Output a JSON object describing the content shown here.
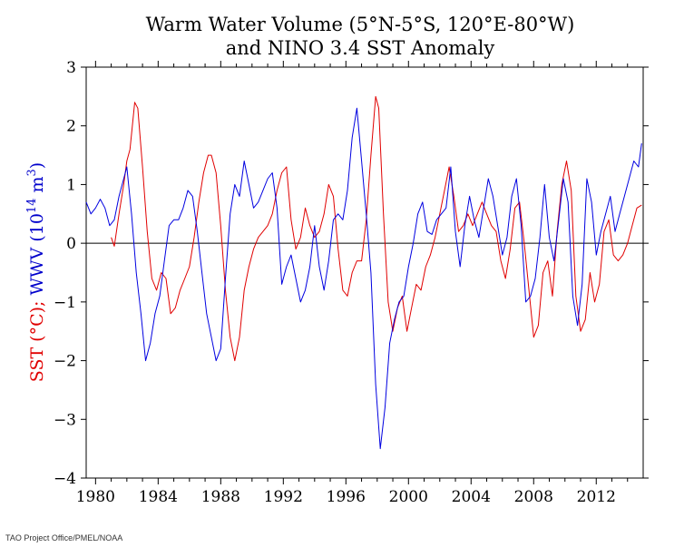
{
  "chart_data": {
    "type": "line",
    "title_line1": "Warm Water Volume (5°N-5°S, 120°E-80°W)",
    "title_line2": "and NINO 3.4 SST Anomaly",
    "ylabel_sst": "SST (°C);",
    "ylabel_wwv_prefix": "WWV (10",
    "ylabel_wwv_exp1": "14",
    "ylabel_wwv_mid": " m",
    "ylabel_wwv_exp2": "3",
    "ylabel_wwv_suffix": ")",
    "xlim": [
      1979.4,
      2015.0
    ],
    "ylim": [
      -4,
      3
    ],
    "x_ticks": [
      1980,
      1984,
      1988,
      1992,
      1996,
      2000,
      2004,
      2008,
      2012
    ],
    "x_tick_labels": [
      "1980",
      "1984",
      "1988",
      "1992",
      "1996",
      "2000",
      "2004",
      "2008",
      "2012"
    ],
    "y_ticks": [
      3,
      2,
      1,
      0,
      -1,
      -2,
      -3,
      -4
    ],
    "y_tick_labels": [
      "3",
      "2",
      "1",
      "0",
      "−1",
      "−2",
      "−3",
      "−4"
    ],
    "zero_line": true,
    "grid": false,
    "series": [
      {
        "color": "#e00000",
        "points": [
          [
            1981.0,
            0.1
          ],
          [
            1981.2,
            -0.05
          ],
          [
            1981.5,
            0.5
          ],
          [
            1981.8,
            1.0
          ],
          [
            1982.0,
            1.4
          ],
          [
            1982.2,
            1.6
          ],
          [
            1982.5,
            2.4
          ],
          [
            1982.7,
            2.3
          ],
          [
            1983.0,
            1.3
          ],
          [
            1983.3,
            0.2
          ],
          [
            1983.6,
            -0.6
          ],
          [
            1983.9,
            -0.8
          ],
          [
            1984.2,
            -0.5
          ],
          [
            1984.5,
            -0.6
          ],
          [
            1984.8,
            -1.2
          ],
          [
            1985.1,
            -1.1
          ],
          [
            1985.4,
            -0.8
          ],
          [
            1985.7,
            -0.6
          ],
          [
            1986.0,
            -0.4
          ],
          [
            1986.3,
            0.1
          ],
          [
            1986.6,
            0.7
          ],
          [
            1986.9,
            1.2
          ],
          [
            1987.2,
            1.5
          ],
          [
            1987.4,
            1.5
          ],
          [
            1987.7,
            1.2
          ],
          [
            1988.0,
            0.3
          ],
          [
            1988.3,
            -0.8
          ],
          [
            1988.6,
            -1.6
          ],
          [
            1988.9,
            -2.0
          ],
          [
            1989.2,
            -1.6
          ],
          [
            1989.5,
            -0.8
          ],
          [
            1989.8,
            -0.4
          ],
          [
            1990.1,
            -0.1
          ],
          [
            1990.4,
            0.1
          ],
          [
            1990.7,
            0.2
          ],
          [
            1991.0,
            0.3
          ],
          [
            1991.3,
            0.5
          ],
          [
            1991.6,
            0.9
          ],
          [
            1991.9,
            1.2
          ],
          [
            1992.2,
            1.3
          ],
          [
            1992.5,
            0.4
          ],
          [
            1992.8,
            -0.1
          ],
          [
            1993.1,
            0.1
          ],
          [
            1993.4,
            0.6
          ],
          [
            1993.7,
            0.3
          ],
          [
            1994.0,
            0.1
          ],
          [
            1994.3,
            0.2
          ],
          [
            1994.6,
            0.5
          ],
          [
            1994.9,
            1.0
          ],
          [
            1995.2,
            0.8
          ],
          [
            1995.5,
            -0.1
          ],
          [
            1995.8,
            -0.8
          ],
          [
            1996.1,
            -0.9
          ],
          [
            1996.4,
            -0.5
          ],
          [
            1996.7,
            -0.3
          ],
          [
            1997.0,
            -0.3
          ],
          [
            1997.3,
            0.4
          ],
          [
            1997.6,
            1.5
          ],
          [
            1997.9,
            2.5
          ],
          [
            1998.1,
            2.3
          ],
          [
            1998.4,
            0.5
          ],
          [
            1998.7,
            -1.0
          ],
          [
            1999.0,
            -1.5
          ],
          [
            1999.3,
            -1.1
          ],
          [
            1999.6,
            -0.9
          ],
          [
            1999.9,
            -1.5
          ],
          [
            2000.2,
            -1.1
          ],
          [
            2000.5,
            -0.7
          ],
          [
            2000.8,
            -0.8
          ],
          [
            2001.1,
            -0.4
          ],
          [
            2001.4,
            -0.2
          ],
          [
            2001.7,
            0.1
          ],
          [
            2002.0,
            0.5
          ],
          [
            2002.3,
            0.9
          ],
          [
            2002.6,
            1.3
          ],
          [
            2002.9,
            0.8
          ],
          [
            2003.2,
            0.2
          ],
          [
            2003.5,
            0.3
          ],
          [
            2003.8,
            0.5
          ],
          [
            2004.1,
            0.3
          ],
          [
            2004.4,
            0.5
          ],
          [
            2004.7,
            0.7
          ],
          [
            2005.0,
            0.5
          ],
          [
            2005.3,
            0.3
          ],
          [
            2005.6,
            0.2
          ],
          [
            2005.9,
            -0.3
          ],
          [
            2006.2,
            -0.6
          ],
          [
            2006.5,
            -0.1
          ],
          [
            2006.8,
            0.6
          ],
          [
            2007.1,
            0.7
          ],
          [
            2007.4,
            0.0
          ],
          [
            2007.7,
            -0.8
          ],
          [
            2008.0,
            -1.6
          ],
          [
            2008.3,
            -1.4
          ],
          [
            2008.6,
            -0.5
          ],
          [
            2008.9,
            -0.3
          ],
          [
            2009.2,
            -0.9
          ],
          [
            2009.5,
            0.2
          ],
          [
            2009.8,
            1.0
          ],
          [
            2010.1,
            1.4
          ],
          [
            2010.4,
            0.9
          ],
          [
            2010.7,
            -0.9
          ],
          [
            2011.0,
            -1.5
          ],
          [
            2011.3,
            -1.3
          ],
          [
            2011.6,
            -0.5
          ],
          [
            2011.9,
            -1.0
          ],
          [
            2012.2,
            -0.7
          ],
          [
            2012.5,
            0.2
          ],
          [
            2012.8,
            0.4
          ],
          [
            2013.1,
            -0.2
          ],
          [
            2013.4,
            -0.3
          ],
          [
            2013.7,
            -0.2
          ],
          [
            2014.0,
            0.0
          ],
          [
            2014.3,
            0.3
          ],
          [
            2014.6,
            0.6
          ],
          [
            2014.9,
            0.65
          ]
        ]
      },
      {
        "color": "#0000e0",
        "points": [
          [
            1979.4,
            0.7
          ],
          [
            1979.7,
            0.5
          ],
          [
            1980.0,
            0.6
          ],
          [
            1980.3,
            0.75
          ],
          [
            1980.6,
            0.6
          ],
          [
            1980.9,
            0.3
          ],
          [
            1981.2,
            0.4
          ],
          [
            1981.5,
            0.8
          ],
          [
            1981.8,
            1.1
          ],
          [
            1982.0,
            1.3
          ],
          [
            1982.3,
            0.5
          ],
          [
            1982.6,
            -0.5
          ],
          [
            1982.9,
            -1.2
          ],
          [
            1983.2,
            -2.0
          ],
          [
            1983.5,
            -1.7
          ],
          [
            1983.8,
            -1.2
          ],
          [
            1984.1,
            -0.9
          ],
          [
            1984.4,
            -0.3
          ],
          [
            1984.7,
            0.3
          ],
          [
            1985.0,
            0.4
          ],
          [
            1985.3,
            0.4
          ],
          [
            1985.6,
            0.6
          ],
          [
            1985.9,
            0.9
          ],
          [
            1986.2,
            0.8
          ],
          [
            1986.5,
            0.2
          ],
          [
            1986.8,
            -0.5
          ],
          [
            1987.1,
            -1.2
          ],
          [
            1987.4,
            -1.6
          ],
          [
            1987.7,
            -2.0
          ],
          [
            1988.0,
            -1.8
          ],
          [
            1988.3,
            -0.6
          ],
          [
            1988.6,
            0.5
          ],
          [
            1988.9,
            1.0
          ],
          [
            1989.2,
            0.8
          ],
          [
            1989.5,
            1.4
          ],
          [
            1989.8,
            1.0
          ],
          [
            1990.1,
            0.6
          ],
          [
            1990.4,
            0.7
          ],
          [
            1990.7,
            0.9
          ],
          [
            1991.0,
            1.1
          ],
          [
            1991.3,
            1.2
          ],
          [
            1991.6,
            0.6
          ],
          [
            1991.9,
            -0.7
          ],
          [
            1992.2,
            -0.4
          ],
          [
            1992.5,
            -0.2
          ],
          [
            1992.8,
            -0.6
          ],
          [
            1993.1,
            -1.0
          ],
          [
            1993.4,
            -0.8
          ],
          [
            1993.7,
            -0.4
          ],
          [
            1994.0,
            0.3
          ],
          [
            1994.3,
            -0.4
          ],
          [
            1994.6,
            -0.8
          ],
          [
            1994.9,
            -0.3
          ],
          [
            1995.2,
            0.4
          ],
          [
            1995.5,
            0.5
          ],
          [
            1995.8,
            0.4
          ],
          [
            1996.1,
            0.9
          ],
          [
            1996.4,
            1.8
          ],
          [
            1996.7,
            2.3
          ],
          [
            1997.0,
            1.4
          ],
          [
            1997.3,
            0.5
          ],
          [
            1997.6,
            -0.5
          ],
          [
            1997.9,
            -2.4
          ],
          [
            1998.2,
            -3.5
          ],
          [
            1998.5,
            -2.8
          ],
          [
            1998.8,
            -1.7
          ],
          [
            1999.1,
            -1.3
          ],
          [
            1999.4,
            -1.0
          ],
          [
            1999.7,
            -0.9
          ],
          [
            2000.0,
            -0.4
          ],
          [
            2000.3,
            0.0
          ],
          [
            2000.6,
            0.5
          ],
          [
            2000.9,
            0.7
          ],
          [
            2001.2,
            0.2
          ],
          [
            2001.5,
            0.15
          ],
          [
            2001.8,
            0.4
          ],
          [
            2002.1,
            0.5
          ],
          [
            2002.4,
            0.6
          ],
          [
            2002.7,
            1.3
          ],
          [
            2003.0,
            0.2
          ],
          [
            2003.3,
            -0.4
          ],
          [
            2003.6,
            0.3
          ],
          [
            2003.9,
            0.8
          ],
          [
            2004.2,
            0.4
          ],
          [
            2004.5,
            0.1
          ],
          [
            2004.8,
            0.6
          ],
          [
            2005.1,
            1.1
          ],
          [
            2005.4,
            0.8
          ],
          [
            2005.7,
            0.3
          ],
          [
            2006.0,
            -0.2
          ],
          [
            2006.3,
            0.1
          ],
          [
            2006.6,
            0.8
          ],
          [
            2006.9,
            1.1
          ],
          [
            2007.2,
            0.3
          ],
          [
            2007.5,
            -1.0
          ],
          [
            2007.8,
            -0.9
          ],
          [
            2008.1,
            -0.6
          ],
          [
            2008.4,
            0.1
          ],
          [
            2008.7,
            1.0
          ],
          [
            2009.0,
            0.1
          ],
          [
            2009.3,
            -0.3
          ],
          [
            2009.6,
            0.4
          ],
          [
            2009.9,
            1.1
          ],
          [
            2010.2,
            0.7
          ],
          [
            2010.5,
            -0.9
          ],
          [
            2010.8,
            -1.4
          ],
          [
            2011.1,
            -0.7
          ],
          [
            2011.4,
            1.1
          ],
          [
            2011.7,
            0.7
          ],
          [
            2012.0,
            -0.2
          ],
          [
            2012.3,
            0.2
          ],
          [
            2012.6,
            0.5
          ],
          [
            2012.9,
            0.8
          ],
          [
            2013.2,
            0.2
          ],
          [
            2013.5,
            0.5
          ],
          [
            2013.8,
            0.8
          ],
          [
            2014.1,
            1.1
          ],
          [
            2014.4,
            1.4
          ],
          [
            2014.7,
            1.3
          ],
          [
            2014.9,
            1.7
          ]
        ]
      }
    ]
  },
  "footer": {
    "credit": "TAO Project Office/PMEL/NOAA"
  }
}
